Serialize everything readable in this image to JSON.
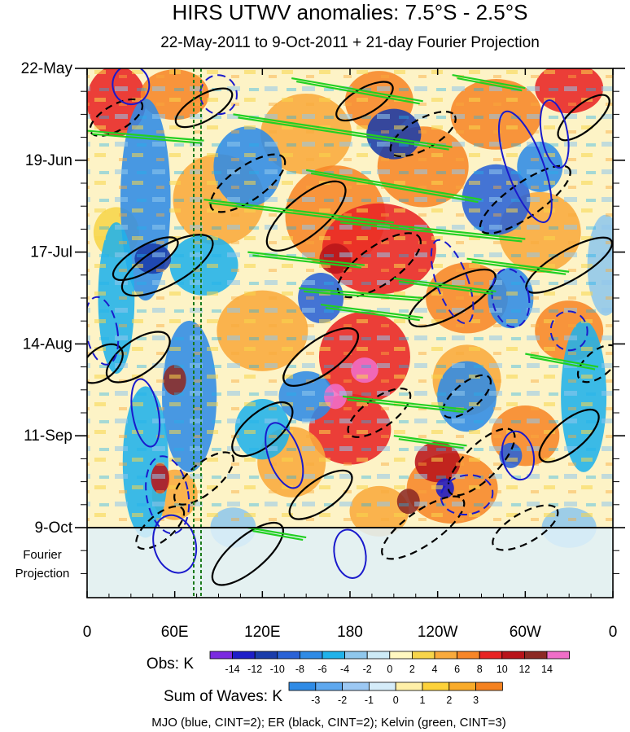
{
  "chart_data": {
    "type": "heatmap",
    "title": "HIRS UTWV anomalies: 7.5°S - 2.5°S",
    "subtitle": "22-May-2011 to 9-Oct-2011 + 21-day Fourier Projection",
    "x_tick_labels": [
      "0",
      "60E",
      "120E",
      "180",
      "120W",
      "60W",
      "0"
    ],
    "x_ticks_deg": [
      0,
      60,
      120,
      180,
      240,
      300,
      360
    ],
    "y_tick_labels": [
      "22-May",
      "19-Jun",
      "17-Jul",
      "14-Aug",
      "11-Sep",
      "9-Oct"
    ],
    "y_ticks_day": [
      0,
      28,
      56,
      84,
      112,
      140
    ],
    "projection_label": [
      "Fourier",
      "Projection"
    ],
    "projection_days": 21,
    "obs_colorbar": {
      "label": "Obs: K",
      "levels": [
        "-14",
        "-12",
        "-10",
        "-8",
        "-6",
        "-4",
        "-2",
        "0",
        "2",
        "4",
        "6",
        "8",
        "10",
        "12",
        "14"
      ],
      "colors": [
        "#7a2ae0",
        "#1e1ec8",
        "#1a3caa",
        "#2a62d6",
        "#2f8be6",
        "#20b2ea",
        "#8fc7ec",
        "#cdeaf6",
        "#fff8c0",
        "#f7d54a",
        "#f9aa3c",
        "#f78628",
        "#e82424",
        "#b8141a",
        "#8c2a24",
        "#f06ec8"
      ]
    },
    "waves_colorbar": {
      "label": "Sum of Waves: K",
      "levels": [
        "-3",
        "-2",
        "-1",
        "0",
        "1",
        "2",
        "3"
      ],
      "colors": [
        "#2f8be6",
        "#5ea8ef",
        "#9cc8f3",
        "#d5ecf9",
        "#fff0a8",
        "#fdd23a",
        "#f9ab2a",
        "#f58220"
      ]
    },
    "contour_legend": "MJO (blue, CINT=2); ER (black, CINT=2); Kelvin (green, CINT=3)",
    "reference_lines_deg": [
      73,
      78
    ]
  }
}
